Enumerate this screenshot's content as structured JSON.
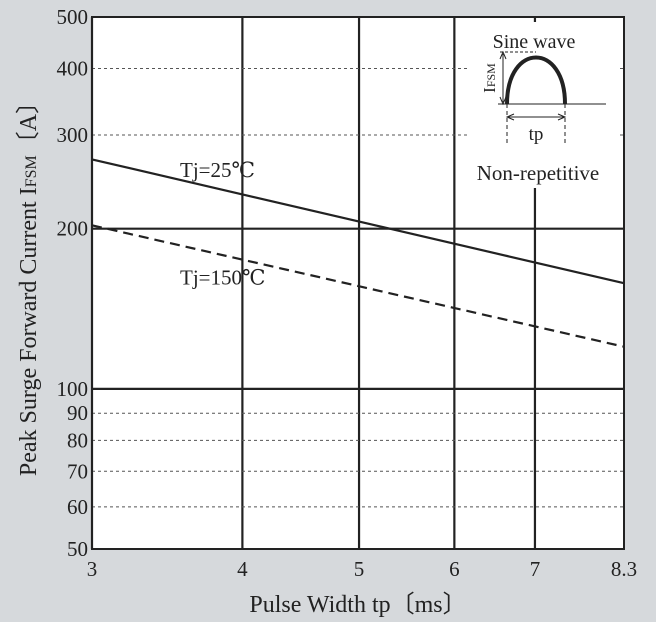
{
  "chart_data": {
    "type": "line",
    "xlabel": "Pulse Width  tp〔ms〕",
    "ylabel_main": "Peak Surge Forward Current  I",
    "ylabel_sub": "FSM",
    "ylabel_unit": "〔A〕",
    "x_scale": "log",
    "y_scale": "log",
    "xlim": [
      3,
      8.3
    ],
    "ylim": [
      50,
      500
    ],
    "x_ticks": [
      {
        "value": 3,
        "label": "3"
      },
      {
        "value": 4,
        "label": "4"
      },
      {
        "value": 5,
        "label": "5"
      },
      {
        "value": 6,
        "label": "6"
      },
      {
        "value": 7,
        "label": "7"
      },
      {
        "value": 8.3,
        "label": "8.3"
      }
    ],
    "y_ticks": [
      {
        "value": 50,
        "label": "50"
      },
      {
        "value": 60,
        "label": "60"
      },
      {
        "value": 70,
        "label": "70"
      },
      {
        "value": 80,
        "label": "80"
      },
      {
        "value": 90,
        "label": "90"
      },
      {
        "value": 100,
        "label": "100"
      },
      {
        "value": 200,
        "label": "200"
      },
      {
        "value": 300,
        "label": "300"
      },
      {
        "value": 400,
        "label": "400"
      },
      {
        "value": 500,
        "label": "500"
      }
    ],
    "x_major_grid": [
      3,
      4,
      5,
      6,
      7
    ],
    "x_minor_grid": [
      8.3
    ],
    "y_major_grid": [
      100,
      200
    ],
    "y_minor_grid": [
      60,
      70,
      80,
      90,
      300,
      400
    ],
    "series": [
      {
        "name": "Tj=25℃",
        "style": "solid",
        "x": [
          3,
          8.3
        ],
        "y": [
          270,
          158
        ],
        "label_at": [
          3.55,
          250
        ]
      },
      {
        "name": "Tj=150℃",
        "style": "dashed",
        "x": [
          3,
          8.3
        ],
        "y": [
          203,
          120
        ],
        "label_at": [
          3.55,
          157
        ]
      }
    ],
    "inset": {
      "title": "Sine wave",
      "amplitude_label_main": "I",
      "amplitude_label_sub": "FSM",
      "width_label": "tp",
      "note": "Non-repetitive"
    },
    "colors": {
      "background": "#d6d9dc",
      "plot": "#ffffff",
      "ink": "#222222"
    }
  }
}
